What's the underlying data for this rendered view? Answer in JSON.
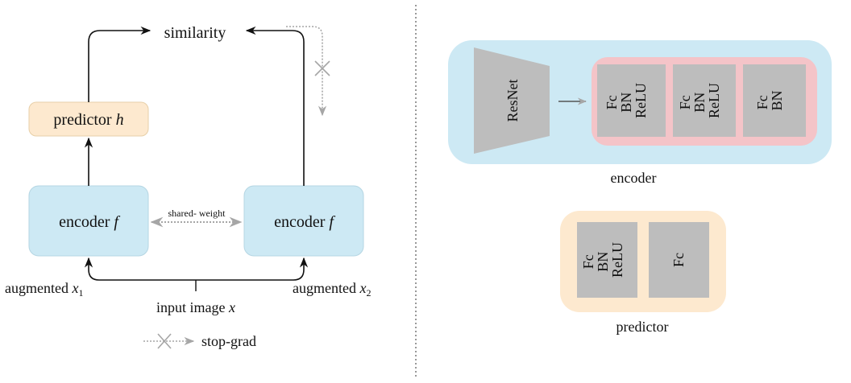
{
  "left": {
    "similarity": "similarity",
    "predictor": {
      "text": "predictor",
      "var": "h"
    },
    "encoder_left": {
      "text": "encoder",
      "var": "f"
    },
    "encoder_right": {
      "text": "encoder",
      "var": "f"
    },
    "shared_weight": "shared- weight",
    "augmented_1": {
      "text": "augmented",
      "var": "x",
      "sub": "1"
    },
    "augmented_2": {
      "text": "augmented",
      "var": "x",
      "sub": "2"
    },
    "input_image": {
      "text": "input image",
      "var": "x"
    },
    "legend_stop_grad": "stop-grad"
  },
  "right": {
    "backbone": "ResNet",
    "encoder_blocks": [
      [
        "Fc",
        "BN",
        "ReLU"
      ],
      [
        "Fc",
        "BN",
        "ReLU"
      ],
      [
        "Fc",
        "BN"
      ]
    ],
    "encoder_caption": "encoder",
    "predictor_blocks": [
      [
        "Fc",
        "BN",
        "ReLU"
      ],
      [
        "Fc"
      ]
    ],
    "predictor_caption": "predictor"
  },
  "colors": {
    "encoder_fill": "#cde9f4",
    "predictor_fill": "#fde9cf",
    "projection_fill": "#f4c4c8",
    "block_fill": "#bdbdbd",
    "stop_grad_gray": "#a6a6a6"
  }
}
